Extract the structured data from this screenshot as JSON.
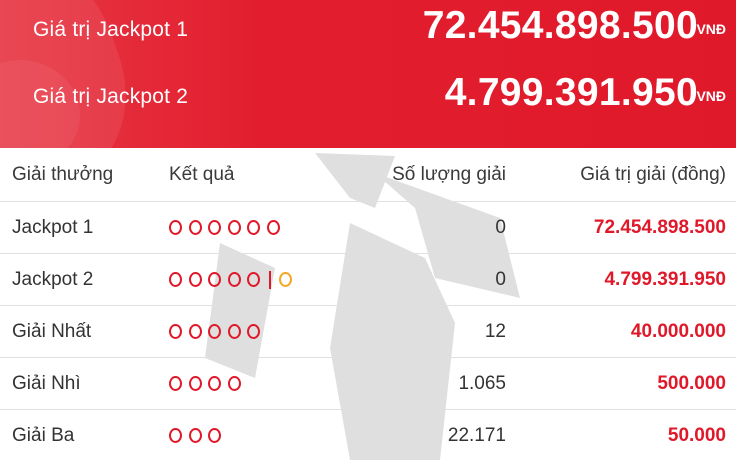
{
  "jackpots": [
    {
      "label": "Giá trị Jackpot 1",
      "value": "72.454.898.500",
      "unit": "VNĐ"
    },
    {
      "label": "Giá trị Jackpot 2",
      "value": "4.799.391.950",
      "unit": "VNĐ"
    }
  ],
  "table": {
    "headers": {
      "prize": "Giải thưởng",
      "result": "Kết quả",
      "count": "Số lượng giải",
      "value": "Giá trị giải (đồng)"
    },
    "rows": [
      {
        "prize": "Jackpot 1",
        "balls": 6,
        "bonus_balls": 0,
        "count": "0",
        "value": "72.454.898.500"
      },
      {
        "prize": "Jackpot 2",
        "balls": 5,
        "bonus_balls": 1,
        "count": "0",
        "value": "4.799.391.950"
      },
      {
        "prize": "Giải Nhất",
        "balls": 5,
        "bonus_balls": 0,
        "count": "12",
        "value": "40.000.000"
      },
      {
        "prize": "Giải Nhì",
        "balls": 4,
        "bonus_balls": 0,
        "count": "1.065",
        "value": "500.000"
      },
      {
        "prize": "Giải Ba",
        "balls": 3,
        "bonus_balls": 0,
        "count": "22.171",
        "value": "50.000"
      }
    ]
  },
  "colors": {
    "brand_red": "#e0192a",
    "bonus_gold": "#f5a623"
  },
  "icons": {
    "ball": "circle-outline-icon",
    "watermark": "star-watermark-icon"
  }
}
